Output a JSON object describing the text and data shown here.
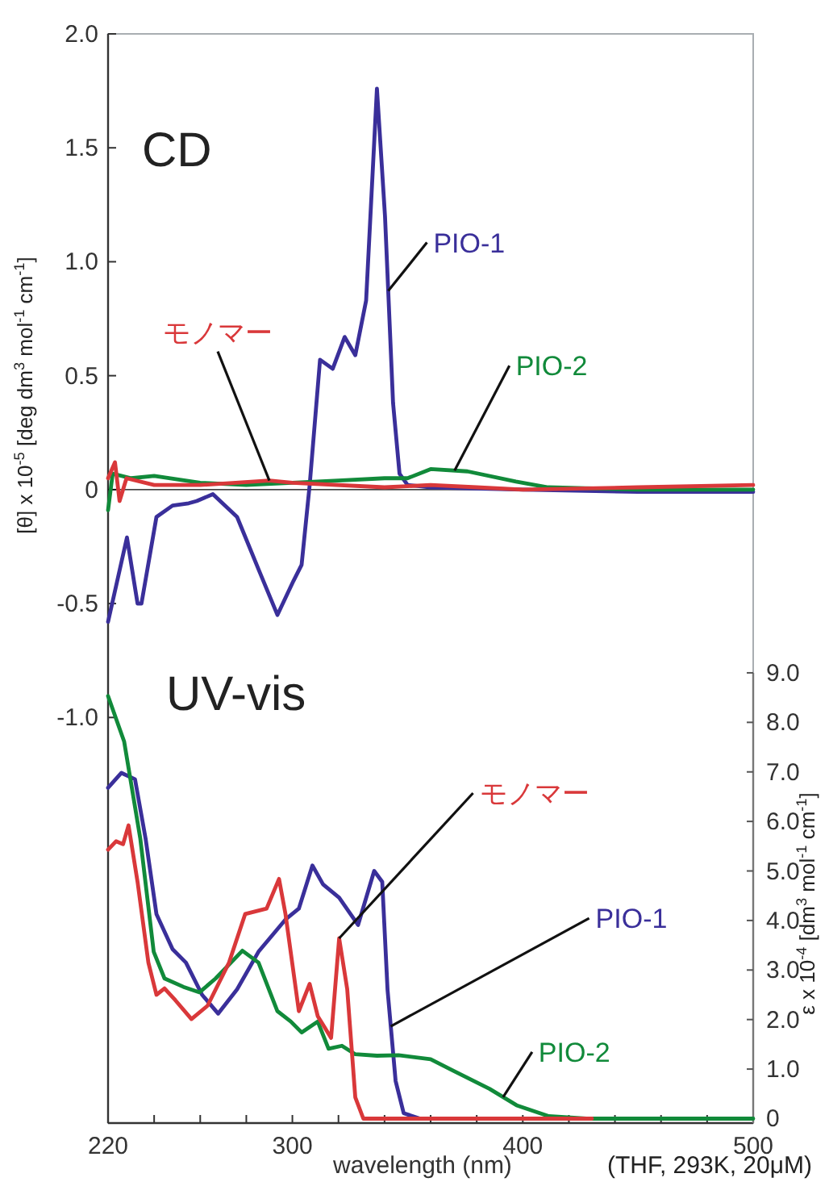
{
  "chart_data": {
    "type": "line",
    "xlabel": "wavelength (nm)",
    "ylabel": "[θ] x 10$^{-5}$ [deg dm$^{3}$ mol$^{-1}$ cm$^{-1}$]",
    "y2label": "ε x 10$^{-4}$ [dm$^{3}$ mol$^{-1}$ cm$^{-1}$]",
    "annotations": [
      "CD",
      "UV-vis",
      "(THF, 293K, 20μM)"
    ],
    "xlim": [
      220,
      500
    ],
    "xticks": [
      220,
      {
        "value": 240,
        "label": null
      },
      {
        "value": 260,
        "label": null
      },
      {
        "value": 280,
        "label": null
      },
      300,
      {
        "value": 320,
        "label": null
      },
      {
        "value": 340,
        "label": null
      },
      {
        "value": 360,
        "label": null
      },
      {
        "value": 380,
        "label": null
      },
      400,
      {
        "value": 420,
        "label": null
      },
      {
        "value": 440,
        "label": null
      },
      {
        "value": 460,
        "label": null
      },
      {
        "value": 480,
        "label": null
      },
      500
    ],
    "ylim": [
      -2.78,
      2.0
    ],
    "yticks": [
      {
        "value": 2,
        "label": "2.0"
      },
      1.5,
      {
        "value": 1,
        "label": "1.0"
      },
      0.5,
      0,
      -0.5,
      {
        "value": -1,
        "label": "-1.0"
      }
    ],
    "y2lim": [
      -0.09,
      21.9
    ],
    "y2ticks": [
      0,
      {
        "value": 1,
        "label": "1.0"
      },
      {
        "value": 2,
        "label": "2.0"
      },
      {
        "value": 3,
        "label": "3.0"
      },
      {
        "value": 4,
        "label": "4.0"
      },
      {
        "value": 5,
        "label": "5.0"
      },
      {
        "value": 6,
        "label": "6.0"
      },
      {
        "value": 7,
        "label": "7.0"
      },
      {
        "value": 8,
        "label": "8.0"
      },
      {
        "value": 9,
        "label": "9.0"
      }
    ],
    "ref_lines": [
      {
        "axis": "y",
        "value": 0,
        "color": "#000000"
      }
    ],
    "series": [
      {
        "name": "PIO-1",
        "color": "#3a2f9a",
        "x": [
          220,
          228.2,
          232.8,
          234.5,
          241,
          248,
          255,
          258.5,
          265.5,
          276,
          285.3,
          293.5,
          300.5,
          304,
          307.5,
          312,
          317.5,
          322.7,
          327.3,
          332,
          336.7,
          340.2,
          343.7,
          346.5,
          350,
          360,
          400,
          450,
          500
        ],
        "values": [
          -0.58,
          -0.21,
          -0.5,
          -0.5,
          -0.12,
          -0.07,
          -0.06,
          -0.05,
          -0.02,
          -0.12,
          -0.35,
          -0.55,
          -0.4,
          -0.33,
          0.02,
          0.57,
          0.53,
          0.67,
          0.59,
          0.83,
          1.76,
          1.2,
          0.38,
          0.07,
          0.02,
          0.01,
          0,
          -0.01,
          -0.01
        ]
      },
      {
        "name": "PIO-2",
        "color": "#118a3a",
        "x": [
          220,
          222,
          230,
          240,
          260,
          280,
          300,
          320,
          340,
          350,
          360,
          376,
          397,
          411,
          450,
          500
        ],
        "values": [
          -0.09,
          0.07,
          0.05,
          0.06,
          0.03,
          0.02,
          0.03,
          0.04,
          0.05,
          0.05,
          0.09,
          0.08,
          0.035,
          0.01,
          0.0,
          0.0
        ]
      },
      {
        "name": "モノマー",
        "color": "#d9383a",
        "x": [
          220,
          223,
          225,
          228,
          240,
          260,
          290,
          300,
          340,
          360,
          380,
          400,
          450,
          500
        ],
        "values": [
          0.05,
          0.12,
          -0.05,
          0.05,
          0.02,
          0.02,
          0.04,
          0.03,
          0.01,
          0.02,
          0.01,
          0,
          0.01,
          0.02
        ]
      },
      {
        "name": "PIO-1",
        "color": "#3a2f9a",
        "axis": "y2",
        "x": [
          220,
          225.8,
          231.7,
          236.3,
          241,
          248,
          253.8,
          260.8,
          267.8,
          276,
          285.3,
          297,
          302.8,
          308.7,
          313.3,
          320.3,
          328.5,
          335.5,
          339,
          341.3,
          344.8,
          348.3,
          355.4,
          370
        ],
        "values": [
          6.68,
          6.98,
          6.85,
          5.65,
          4.13,
          3.42,
          3.15,
          2.5,
          2.12,
          2.61,
          3.37,
          4.02,
          4.24,
          5.11,
          4.73,
          4.46,
          3.91,
          5.0,
          4.78,
          2.6,
          0.76,
          0.11,
          0,
          0
        ]
      },
      {
        "name": "PIO-2",
        "color": "#118a3a",
        "axis": "y2",
        "x": [
          220,
          227,
          234,
          239.8,
          244.5,
          252.7,
          259.7,
          266.7,
          278.3,
          285.3,
          293.5,
          299.3,
          304,
          311,
          315.7,
          321.5,
          327.3,
          336.7,
          346.1,
          360,
          369.3,
          385.6,
          397.3,
          411.3,
          427.6,
          500
        ],
        "values": [
          8.53,
          7.61,
          5.65,
          3.37,
          2.83,
          2.66,
          2.55,
          2.83,
          3.39,
          3.15,
          2.17,
          1.96,
          1.74,
          1.96,
          1.41,
          1.47,
          1.3,
          1.27,
          1.28,
          1.2,
          0.98,
          0.6,
          0.27,
          0.05,
          0,
          0
        ]
      },
      {
        "name": "モノマー",
        "color": "#d9383a",
        "axis": "y2",
        "x": [
          220,
          223.5,
          226.5,
          228.9,
          232.8,
          237.5,
          241,
          244.5,
          249.2,
          256.2,
          263.2,
          272.5,
          279.5,
          288.8,
          294.2,
          297,
          302.8,
          307.5,
          311,
          316.8,
          320.3,
          323.8,
          327.3,
          330.8,
          336.7,
          430
        ],
        "values": [
          5.43,
          5.6,
          5.54,
          5.92,
          4.78,
          3.15,
          2.5,
          2.63,
          2.39,
          2.01,
          2.28,
          3.15,
          4.13,
          4.24,
          4.84,
          4.13,
          2.17,
          2.72,
          2.07,
          1.63,
          3.64,
          2.61,
          0.43,
          0,
          0,
          0
        ]
      }
    ]
  }
}
